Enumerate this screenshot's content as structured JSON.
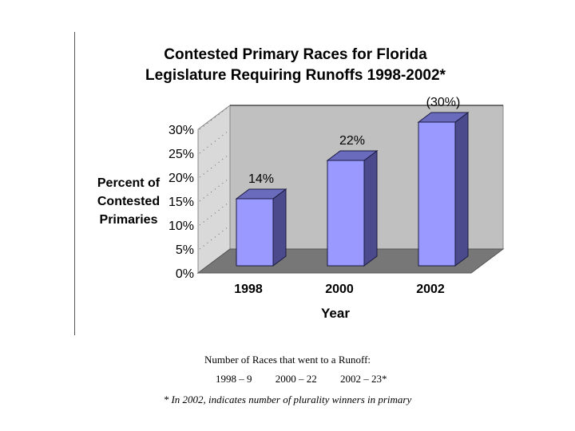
{
  "chart_data": {
    "type": "bar",
    "title_lines": [
      "Contested Primary Races for Florida",
      "Legislature Requiring Runoffs 1998-2002*"
    ],
    "ylabel_lines": [
      "Percent of",
      "Contested",
      "Primaries"
    ],
    "xlabel": "Year",
    "categories": [
      "1998",
      "2000",
      "2002"
    ],
    "values": [
      14,
      22,
      30
    ],
    "data_labels": [
      "14%",
      "22%",
      "(30%)"
    ],
    "ylim": [
      0,
      30
    ],
    "yticks": [
      "0%",
      "5%",
      "10%",
      "15%",
      "20%",
      "25%",
      "30%"
    ],
    "bar_color": "#9999ff",
    "bar_side_color": "#4a4a8c",
    "wall_color": "#c0c0c0",
    "floor_color": "#777777"
  },
  "runoff_note": {
    "title": "Number of Races that went to a Runoff:",
    "items": [
      "1998 – 9",
      "2000 – 22",
      "2002 – 23*"
    ]
  },
  "footnote": "* In 2002, indicates number of plurality winners in primary"
}
